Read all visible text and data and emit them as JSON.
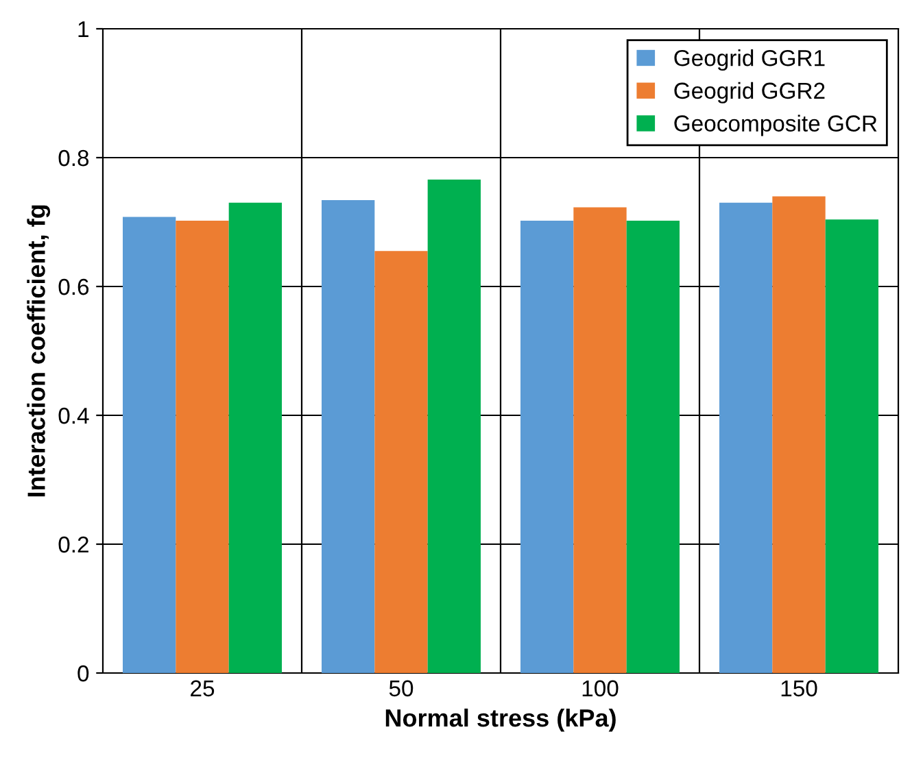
{
  "chart_data": {
    "type": "bar",
    "xlabel": "Normal stress (kPa)",
    "ylabel": "Interaction coefficient, fg",
    "categories": [
      "25",
      "50",
      "100",
      "150"
    ],
    "series": [
      {
        "name": "Geogrid GGR1",
        "color": "#5b9bd5",
        "values": [
          0.708,
          0.734,
          0.702,
          0.73
        ]
      },
      {
        "name": "Geogrid GGR2",
        "color": "#ed7d31",
        "values": [
          0.702,
          0.655,
          0.723,
          0.74
        ]
      },
      {
        "name": "Geocomposite GCR",
        "color": "#00b050",
        "values": [
          0.73,
          0.766,
          0.702,
          0.704
        ]
      }
    ],
    "ylim": [
      0,
      1
    ],
    "yticks": [
      0,
      0.2,
      0.4,
      0.6,
      0.8,
      1
    ],
    "grid": true,
    "legend": "top right"
  }
}
